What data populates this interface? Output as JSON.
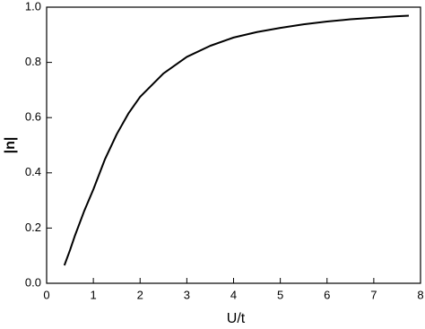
{
  "chart_data": {
    "type": "line",
    "x_label": "U/t",
    "y_label": "|n|",
    "x": [
      0.38,
      0.5,
      0.6,
      0.8,
      1.0,
      1.25,
      1.5,
      1.75,
      2.0,
      2.5,
      3.0,
      3.5,
      4.0,
      4.5,
      5.0,
      5.5,
      6.0,
      6.5,
      7.0,
      7.5,
      7.75
    ],
    "values": [
      0.065,
      0.12,
      0.17,
      0.26,
      0.34,
      0.45,
      0.54,
      0.615,
      0.675,
      0.76,
      0.82,
      0.86,
      0.89,
      0.91,
      0.925,
      0.938,
      0.948,
      0.956,
      0.962,
      0.967,
      0.969
    ],
    "color": "#000000",
    "xlim": [
      0,
      8
    ],
    "xticks": [
      0,
      1,
      2,
      3,
      4,
      5,
      6,
      7,
      8
    ],
    "ylim": [
      0,
      1
    ],
    "yticks": [
      {
        "value": 0,
        "label": "0.0"
      },
      {
        "value": 0.2,
        "label": "0.2"
      },
      {
        "value": 0.4,
        "label": "0.4"
      },
      {
        "value": 0.6,
        "label": "0.6"
      },
      {
        "value": 0.8,
        "label": "0.8"
      },
      {
        "value": 1,
        "label": "1.0"
      }
    ]
  }
}
